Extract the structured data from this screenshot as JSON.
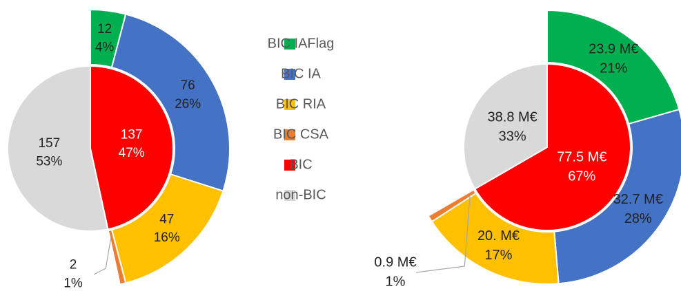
{
  "legend": [
    {
      "name": "BIC IAFlag",
      "color": "#00b050"
    },
    {
      "name": "BIC IA",
      "color": "#4472c4"
    },
    {
      "name": "BIC RIA",
      "color": "#ffc000"
    },
    {
      "name": "BIC CSA",
      "color": "#ed7d31"
    },
    {
      "name": "BIC",
      "color": "#ff0000"
    },
    {
      "name": "non-BIC",
      "color": "#d9d9d9"
    }
  ],
  "chart_data": [
    {
      "type": "sunburst",
      "inner": {
        "values": [
          137,
          157
        ],
        "shares": [
          47,
          53
        ],
        "share_labels": [
          "47%",
          "53%"
        ]
      },
      "outer": {
        "values": [
          12,
          76,
          47,
          2
        ],
        "shares": [
          4,
          26,
          16,
          1
        ],
        "share_labels": [
          "4%",
          "26%",
          "16%",
          "1%"
        ]
      }
    },
    {
      "type": "sunburst",
      "inner": {
        "values": [
          77.5,
          38.8
        ],
        "value_labels": [
          "77.5 M€",
          "38.8 M€"
        ],
        "shares": [
          67,
          33
        ],
        "share_labels": [
          "67%",
          "33%"
        ]
      },
      "outer": {
        "values": [
          23.9,
          32.7,
          20.0,
          0.9
        ],
        "value_labels": [
          "23.9 M€",
          "32.7 M€",
          "20. M€",
          "0.9 M€"
        ],
        "shares": [
          21,
          28,
          17,
          1
        ],
        "share_labels": [
          "21%",
          "28%",
          "17%",
          "1%"
        ]
      }
    }
  ]
}
